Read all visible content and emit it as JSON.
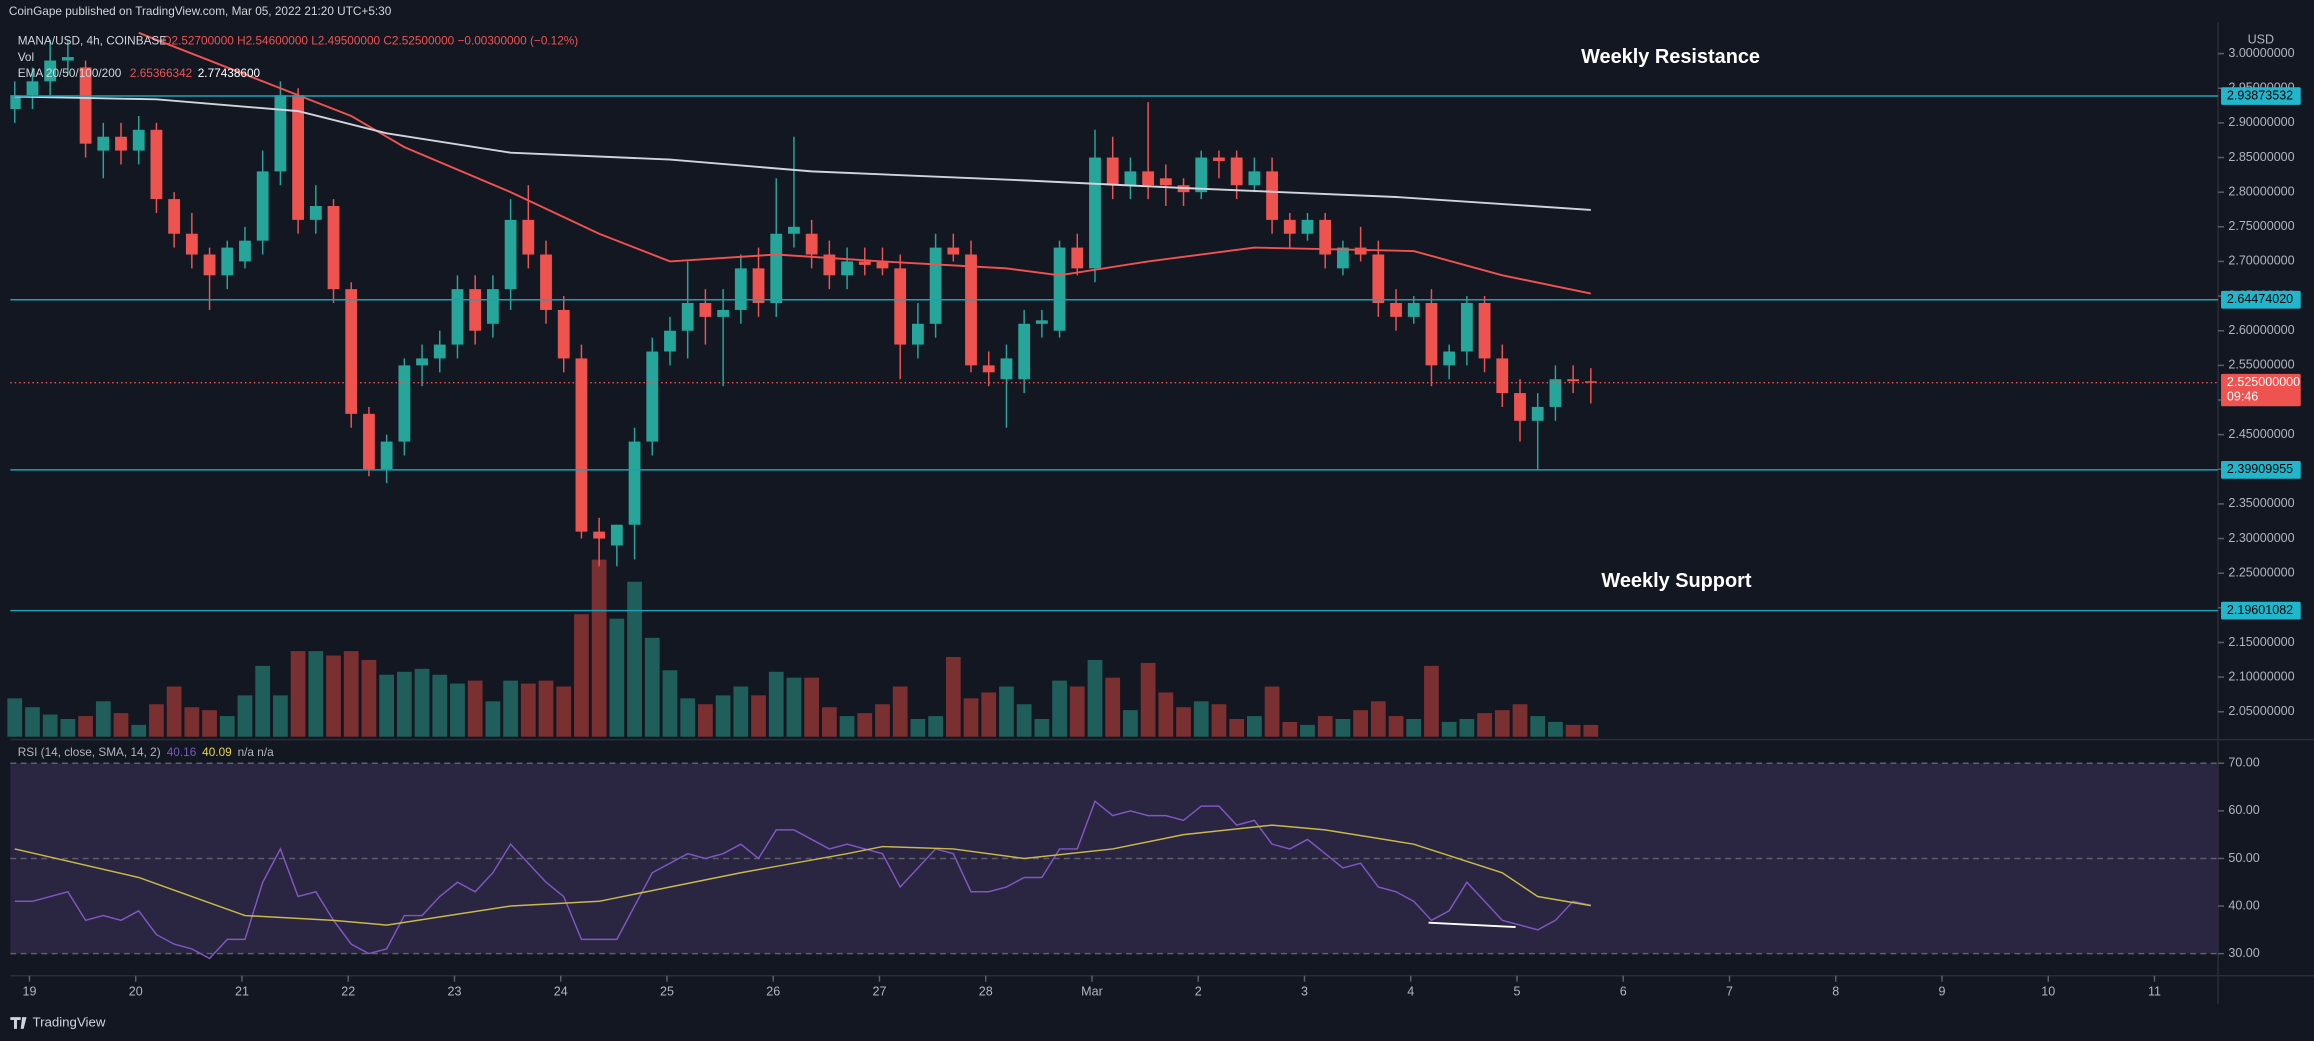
{
  "header": {
    "publisher": "CoinGape published on TradingView.com, Mar 05, 2022 21:20 UTC+5:30"
  },
  "chart_data": [
    {
      "type": "candlestick",
      "title": "MANA/USD, 4h, COINBASE",
      "ohlc_legend": "O2.52700000 H2.54600000 L2.49500000 C2.52500000 −0.00300000 (−0.12%)",
      "volume_legend": "Vol",
      "ema_legend": "EMA 20/50/100/200",
      "ema_values": [
        "2.65366342",
        "2.77438600"
      ],
      "currency": "USD",
      "colors": {
        "up": "#26a69a",
        "down": "#ef5350",
        "level": "#1e9fb3"
      },
      "open": [
        2.92,
        2.94,
        2.96,
        2.99,
        2.98,
        2.86,
        2.88,
        2.86,
        2.89,
        2.79,
        2.74,
        2.71,
        2.68,
        2.7,
        2.73,
        2.83,
        2.94,
        2.76,
        2.78,
        2.66,
        2.48,
        2.4,
        2.44,
        2.55,
        2.56,
        2.58,
        2.66,
        2.61,
        2.66,
        2.76,
        2.71,
        2.63,
        2.56,
        2.31,
        2.29,
        2.32,
        2.44,
        2.57,
        2.6,
        2.64,
        2.62,
        2.63,
        2.69,
        2.64,
        2.74,
        2.74,
        2.71,
        2.68,
        2.7,
        2.7,
        2.69,
        2.58,
        2.61,
        2.72,
        2.71,
        2.55,
        2.53,
        2.53,
        2.61,
        2.6,
        2.72,
        2.69,
        2.85,
        2.81,
        2.83,
        2.82,
        2.81,
        2.8,
        2.85,
        2.85,
        2.81,
        2.83,
        2.76,
        2.74,
        2.76,
        2.69,
        2.72,
        2.71,
        2.64,
        2.62,
        2.64,
        2.55,
        2.57,
        2.64,
        2.56,
        2.51,
        2.47,
        2.49,
        2.53,
        2.527
      ],
      "high": [
        2.96,
        2.98,
        3.02,
        3.02,
        2.99,
        2.9,
        2.9,
        2.91,
        2.9,
        2.8,
        2.77,
        2.72,
        2.73,
        2.75,
        2.86,
        2.96,
        2.95,
        2.81,
        2.79,
        2.67,
        2.49,
        2.45,
        2.56,
        2.58,
        2.6,
        2.68,
        2.68,
        2.68,
        2.79,
        2.81,
        2.73,
        2.65,
        2.58,
        2.33,
        2.32,
        2.46,
        2.59,
        2.62,
        2.7,
        2.66,
        2.66,
        2.71,
        2.72,
        2.82,
        2.88,
        2.76,
        2.73,
        2.72,
        2.72,
        2.72,
        2.71,
        2.64,
        2.74,
        2.74,
        2.73,
        2.57,
        2.58,
        2.63,
        2.63,
        2.73,
        2.74,
        2.89,
        2.88,
        2.85,
        2.93,
        2.84,
        2.82,
        2.86,
        2.86,
        2.86,
        2.85,
        2.85,
        2.77,
        2.77,
        2.77,
        2.73,
        2.75,
        2.73,
        2.66,
        2.65,
        2.66,
        2.58,
        2.65,
        2.65,
        2.58,
        2.53,
        2.51,
        2.55,
        2.55,
        2.546
      ],
      "low": [
        2.9,
        2.92,
        2.94,
        2.97,
        2.85,
        2.82,
        2.84,
        2.84,
        2.77,
        2.72,
        2.69,
        2.63,
        2.66,
        2.69,
        2.71,
        2.81,
        2.74,
        2.74,
        2.64,
        2.46,
        2.39,
        2.38,
        2.42,
        2.52,
        2.54,
        2.56,
        2.58,
        2.59,
        2.63,
        2.69,
        2.61,
        2.54,
        2.3,
        2.26,
        2.26,
        2.27,
        2.42,
        2.55,
        2.56,
        2.58,
        2.52,
        2.61,
        2.62,
        2.62,
        2.72,
        2.69,
        2.66,
        2.66,
        2.68,
        2.68,
        2.53,
        2.56,
        2.59,
        2.7,
        2.54,
        2.52,
        2.46,
        2.51,
        2.59,
        2.59,
        2.68,
        2.67,
        2.79,
        2.79,
        2.79,
        2.78,
        2.78,
        2.79,
        2.82,
        2.79,
        2.8,
        2.74,
        2.72,
        2.73,
        2.69,
        2.68,
        2.7,
        2.62,
        2.6,
        2.61,
        2.52,
        2.53,
        2.55,
        2.54,
        2.49,
        2.44,
        2.4,
        2.47,
        2.51,
        2.495
      ],
      "close": [
        2.94,
        2.96,
        2.99,
        2.995,
        2.87,
        2.88,
        2.86,
        2.89,
        2.79,
        2.74,
        2.71,
        2.68,
        2.72,
        2.73,
        2.83,
        2.94,
        2.76,
        2.78,
        2.66,
        2.48,
        2.4,
        2.44,
        2.55,
        2.56,
        2.58,
        2.66,
        2.6,
        2.66,
        2.76,
        2.71,
        2.63,
        2.56,
        2.31,
        2.3,
        2.32,
        2.44,
        2.57,
        2.6,
        2.64,
        2.62,
        2.63,
        2.69,
        2.64,
        2.74,
        2.75,
        2.71,
        2.68,
        2.7,
        2.695,
        2.69,
        2.58,
        2.61,
        2.72,
        2.71,
        2.55,
        2.54,
        2.56,
        2.61,
        2.615,
        2.72,
        2.69,
        2.85,
        2.81,
        2.83,
        2.81,
        2.81,
        2.8,
        2.85,
        2.845,
        2.81,
        2.83,
        2.76,
        2.74,
        2.76,
        2.71,
        2.72,
        2.71,
        2.64,
        2.62,
        2.64,
        2.55,
        2.57,
        2.64,
        2.56,
        2.51,
        2.47,
        2.49,
        2.53,
        2.527,
        2.525
      ],
      "series": [
        {
          "color": "#f0524f",
          "x": [
            7,
            15,
            19,
            22,
            28,
            33,
            37,
            43,
            49,
            56,
            59,
            64,
            70,
            79,
            84,
            89
          ],
          "values": [
            3.03,
            2.95,
            2.91,
            2.865,
            2.8,
            2.74,
            2.7,
            2.71,
            2.7,
            2.69,
            2.68,
            2.7,
            2.72,
            2.715,
            2.68,
            2.65366342
          ]
        },
        {
          "color": "#d1d4dc",
          "x": [
            0,
            8,
            16,
            21,
            28,
            37,
            45,
            57,
            66,
            78,
            89
          ],
          "values": [
            2.938,
            2.934,
            2.917,
            2.885,
            2.857,
            2.847,
            2.83,
            2.817,
            2.806,
            2.793,
            2.774386
          ]
        }
      ],
      "levels": [
        2.93873532,
        {
          "value": 2.6447402,
          "label": "2.64474020"
        },
        2.39909955,
        2.19601082
      ],
      "last_price": {
        "value": 2.525,
        "label": "2.525000000",
        "countdown": "09:46"
      },
      "annotations": [
        "Weekly Resistance",
        "Weekly Support"
      ],
      "xlim": [
        -0.25,
        124.42
      ],
      "xticks": [
        {
          "value": 0.83,
          "label": "19"
        },
        {
          "value": 6.83,
          "label": "20"
        },
        {
          "value": 12.83,
          "label": "21"
        },
        {
          "value": 18.83,
          "label": "22"
        },
        {
          "value": 24.83,
          "label": "23"
        },
        {
          "value": 30.83,
          "label": "24"
        },
        {
          "value": 36.83,
          "label": "25"
        },
        {
          "value": 42.83,
          "label": "26"
        },
        {
          "value": 48.83,
          "label": "27"
        },
        {
          "value": 54.83,
          "label": "28"
        },
        {
          "value": 60.83,
          "label": "Mar"
        },
        {
          "value": 66.83,
          "label": "2"
        },
        {
          "value": 72.83,
          "label": "3"
        },
        {
          "value": 78.83,
          "label": "4"
        },
        {
          "value": 84.83,
          "label": "5"
        },
        {
          "value": 90.83,
          "label": "6"
        },
        {
          "value": 96.83,
          "label": "7"
        },
        {
          "value": 102.83,
          "label": "8"
        },
        {
          "value": 108.83,
          "label": "9"
        },
        {
          "value": 114.83,
          "label": "10"
        },
        {
          "value": 120.83,
          "label": "11"
        }
      ],
      "ylim": [
        2.014,
        3.045
      ],
      "yticks": [
        {
          "value": 2.05,
          "label": "2.05000000"
        },
        {
          "value": 2.1,
          "label": "2.10000000"
        },
        {
          "value": 2.15,
          "label": "2.15000000"
        },
        {
          "value": 2.2,
          "label": "2.20000000"
        },
        {
          "value": 2.25,
          "label": "2.25000000"
        },
        {
          "value": 2.3,
          "label": "2.30000000"
        },
        {
          "value": 2.35,
          "label": "2.35000000"
        },
        {
          "value": 2.4,
          "label": "2.40000000"
        },
        {
          "value": 2.45,
          "label": "2.45000000"
        },
        {
          "value": 2.5,
          "label": "2.50000000"
        },
        {
          "value": 2.55,
          "label": "2.55000000"
        },
        {
          "value": 2.6,
          "label": "2.60000000"
        },
        {
          "value": 2.65,
          "label": "2.65000000"
        },
        {
          "value": 2.7,
          "label": "2.70000000"
        },
        {
          "value": 2.75,
          "label": "2.75000000"
        },
        {
          "value": 2.8,
          "label": "2.80000000"
        },
        {
          "value": 2.85,
          "label": "2.85000000"
        },
        {
          "value": 2.9,
          "label": "2.90000000"
        },
        {
          "value": 2.95,
          "label": "2.95000000"
        },
        {
          "value": 3,
          "label": "3.00000000"
        }
      ]
    },
    {
      "type": "bar",
      "colors": {
        "up": "#1f5e5a",
        "down": "#7a2f31"
      },
      "values": [
        26,
        20,
        15,
        12,
        14,
        24,
        16,
        8,
        22,
        34,
        20,
        18,
        14,
        28,
        48,
        28,
        58,
        58,
        55,
        58,
        52,
        42,
        44,
        46,
        42,
        36,
        38,
        24,
        38,
        36,
        38,
        34,
        83,
        120,
        80,
        105,
        67,
        45,
        26,
        22,
        28,
        34,
        28,
        44,
        40,
        40,
        20,
        14,
        16,
        22,
        34,
        12,
        14,
        54,
        26,
        30,
        34,
        22,
        12,
        38,
        34,
        52,
        40,
        18,
        50,
        30,
        20,
        24,
        22,
        12,
        14,
        34,
        10,
        8,
        14,
        12,
        18,
        24,
        14,
        12,
        48,
        10,
        12,
        16,
        18,
        22,
        14,
        10,
        8,
        8
      ],
      "ylim": [
        0,
        130
      ]
    },
    {
      "type": "line",
      "title": "RSI (14, close, SMA, 14, 2)",
      "extra_legend": "n/a n/a",
      "band_color": "#2a2540",
      "series": [
        {
          "color": "#7e57c2",
          "legend_value": "40.16",
          "values": [
            41,
            41,
            42,
            43,
            37,
            38,
            37,
            39,
            34,
            32,
            31,
            29,
            33,
            33,
            45,
            52,
            42,
            43,
            37,
            32,
            30,
            31,
            38,
            38,
            42,
            45,
            43,
            47,
            53,
            49,
            45,
            42,
            33,
            33,
            33,
            40,
            47,
            49,
            51,
            50,
            51,
            53,
            50,
            56,
            56,
            54,
            52,
            53,
            52,
            51,
            44,
            48,
            52,
            51,
            43,
            43,
            44,
            46,
            46,
            52,
            52,
            62,
            59,
            60,
            59,
            59,
            58,
            61,
            61,
            57,
            58,
            53,
            52,
            54,
            51,
            48,
            49,
            44,
            43,
            41,
            37,
            39,
            45,
            41,
            37,
            36,
            35,
            37,
            41,
            40.16
          ]
        },
        {
          "color": "#c9b94a",
          "legend_value": "40.09",
          "x": [
            0,
            7,
            13,
            18,
            21,
            28,
            33,
            37,
            41,
            47,
            49,
            53,
            57,
            62,
            66,
            71,
            74,
            79,
            84,
            86,
            89
          ],
          "values": [
            52,
            46,
            38,
            37,
            36,
            40,
            41,
            44,
            47,
            51,
            52.5,
            52,
            50,
            52,
            55,
            57,
            56,
            53,
            47,
            42,
            40.09
          ]
        }
      ],
      "ylim": [
        25.66,
        74.34
      ],
      "yticks": [
        {
          "value": 30,
          "label": "30.00"
        },
        {
          "value": 40,
          "label": "40.00"
        },
        {
          "value": 50,
          "label": "50.00"
        },
        {
          "value": 60,
          "label": "60.00"
        },
        {
          "value": 70,
          "label": "70.00"
        }
      ]
    }
  ],
  "footer": {
    "brand": "TradingView"
  }
}
